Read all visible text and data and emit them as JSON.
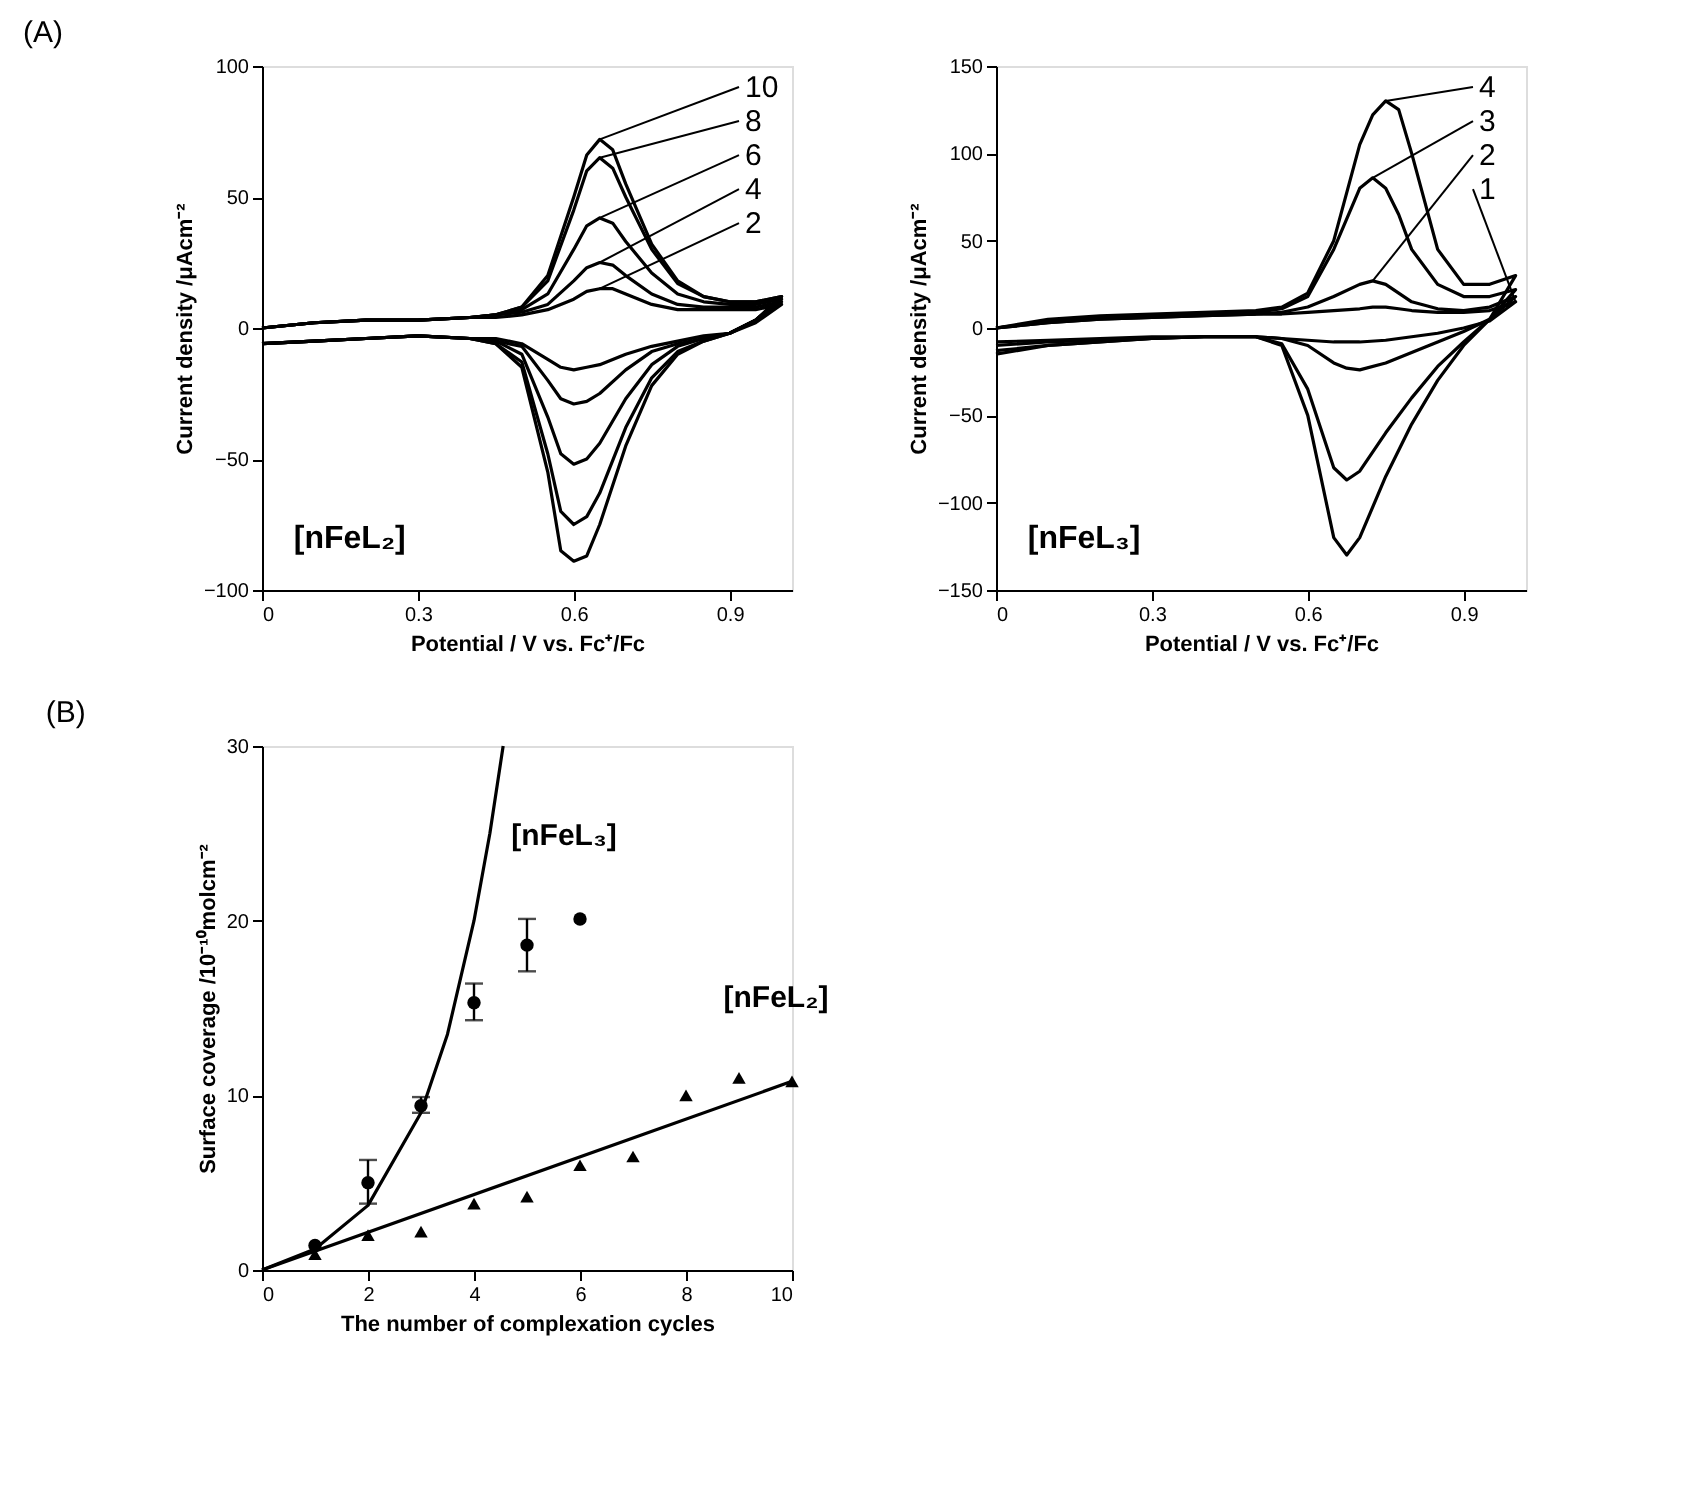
{
  "chart_data": [
    {
      "type": "line",
      "title": "(A)",
      "xlabel": "Potential / V vs. Fc⁺/Fc",
      "ylabel": "Current density /μAcm⁻²",
      "xlim": [
        0,
        1.02
      ],
      "ylim": [
        -100,
        100
      ],
      "xticks": [
        0,
        0.3,
        0.6,
        0.9
      ],
      "yticks": [
        -100,
        -50,
        0,
        50,
        100
      ],
      "legend": "top right",
      "annotations": [
        "[nFeL₂]"
      ],
      "series": [
        {
          "name": "10",
          "color": "#000000",
          "x": [
            0,
            0.1,
            0.2,
            0.3,
            0.4,
            0.45,
            0.5,
            0.55,
            0.6,
            0.625,
            0.65,
            0.675,
            0.7,
            0.75,
            0.8,
            0.85,
            0.9,
            0.95,
            1.0,
            1.0,
            0.95,
            0.9,
            0.85,
            0.8,
            0.75,
            0.7,
            0.65,
            0.625,
            0.6,
            0.575,
            0.55,
            0.5,
            0.45,
            0.4,
            0.3,
            0.2,
            0.1,
            0.0
          ],
          "values": [
            0,
            2,
            3,
            3,
            4,
            5,
            8,
            20,
            50,
            66,
            72,
            68,
            55,
            32,
            18,
            12,
            10,
            10,
            12,
            12,
            3,
            -2,
            -5,
            -10,
            -22,
            -45,
            -75,
            -87,
            -89,
            -85,
            -55,
            -15,
            -6,
            -4,
            -3,
            -4,
            -5,
            -6
          ]
        },
        {
          "name": "8",
          "color": "#000000",
          "x": [
            0,
            0.1,
            0.2,
            0.3,
            0.4,
            0.45,
            0.5,
            0.55,
            0.6,
            0.625,
            0.65,
            0.675,
            0.7,
            0.75,
            0.8,
            0.85,
            0.9,
            0.95,
            1.0,
            1.0,
            0.95,
            0.9,
            0.85,
            0.8,
            0.75,
            0.7,
            0.65,
            0.625,
            0.6,
            0.575,
            0.55,
            0.5,
            0.45,
            0.4,
            0.3,
            0.2,
            0.1,
            0.0
          ],
          "values": [
            0,
            2,
            3,
            3,
            4,
            5,
            8,
            18,
            45,
            60,
            65,
            61,
            50,
            30,
            17,
            12,
            10,
            10,
            12,
            12,
            3,
            -2,
            -5,
            -9,
            -19,
            -38,
            -63,
            -72,
            -75,
            -70,
            -48,
            -13,
            -6,
            -4,
            -3,
            -4,
            -5,
            -6
          ]
        },
        {
          "name": "6",
          "color": "#000000",
          "x": [
            0,
            0.1,
            0.2,
            0.3,
            0.4,
            0.45,
            0.5,
            0.55,
            0.6,
            0.625,
            0.65,
            0.675,
            0.7,
            0.75,
            0.8,
            0.85,
            0.9,
            0.95,
            1.0,
            1.0,
            0.95,
            0.9,
            0.85,
            0.8,
            0.75,
            0.7,
            0.65,
            0.625,
            0.6,
            0.575,
            0.55,
            0.5,
            0.45,
            0.4,
            0.3,
            0.2,
            0.1,
            0.0
          ],
          "values": [
            0,
            2,
            3,
            3,
            4,
            5,
            7,
            13,
            30,
            39,
            42,
            40,
            33,
            21,
            13,
            10,
            9,
            9,
            11,
            11,
            3,
            -2,
            -4,
            -7,
            -14,
            -27,
            -44,
            -50,
            -52,
            -48,
            -34,
            -10,
            -5,
            -4,
            -3,
            -4,
            -5,
            -6
          ]
        },
        {
          "name": "4",
          "color": "#000000",
          "x": [
            0,
            0.1,
            0.2,
            0.3,
            0.4,
            0.45,
            0.5,
            0.55,
            0.6,
            0.625,
            0.65,
            0.675,
            0.7,
            0.75,
            0.8,
            0.85,
            0.9,
            0.95,
            1.0,
            1.0,
            0.95,
            0.9,
            0.85,
            0.8,
            0.75,
            0.7,
            0.65,
            0.625,
            0.6,
            0.575,
            0.55,
            0.5,
            0.45,
            0.4,
            0.3,
            0.2,
            0.1,
            0.0
          ],
          "values": [
            0,
            2,
            3,
            3,
            4,
            5,
            6,
            9,
            18,
            23,
            25,
            24,
            20,
            13,
            9,
            8,
            8,
            8,
            10,
            10,
            3,
            -2,
            -4,
            -6,
            -9,
            -16,
            -25,
            -28,
            -29,
            -27,
            -20,
            -7,
            -5,
            -4,
            -3,
            -4,
            -5,
            -6
          ]
        },
        {
          "name": "2",
          "color": "#000000",
          "x": [
            0,
            0.1,
            0.2,
            0.3,
            0.4,
            0.45,
            0.5,
            0.55,
            0.6,
            0.625,
            0.65,
            0.675,
            0.7,
            0.75,
            0.8,
            0.85,
            0.9,
            0.95,
            1.0,
            1.0,
            0.95,
            0.9,
            0.85,
            0.8,
            0.75,
            0.7,
            0.65,
            0.625,
            0.6,
            0.575,
            0.55,
            0.5,
            0.45,
            0.4,
            0.3,
            0.2,
            0.1,
            0.0
          ],
          "values": [
            0,
            2,
            3,
            3,
            4,
            4,
            5,
            7,
            11,
            14,
            15,
            15,
            13,
            9,
            7,
            7,
            7,
            7,
            9,
            9,
            2,
            -2,
            -3,
            -5,
            -7,
            -10,
            -14,
            -15,
            -16,
            -15,
            -12,
            -6,
            -4,
            -4,
            -3,
            -4,
            -5,
            -6
          ]
        }
      ]
    },
    {
      "type": "line",
      "xlabel": "Potential / V vs. Fc⁺/Fc",
      "ylabel": "Current density /μAcm⁻²",
      "xlim": [
        0,
        1.02
      ],
      "ylim": [
        -150,
        150
      ],
      "xticks": [
        0,
        0.3,
        0.6,
        0.9
      ],
      "yticks": [
        -150,
        -100,
        -50,
        0,
        50,
        100,
        150
      ],
      "legend": "top right",
      "annotations": [
        "[nFeL₃]"
      ],
      "series": [
        {
          "name": "4",
          "color": "#000000",
          "x": [
            0,
            0.1,
            0.2,
            0.3,
            0.4,
            0.5,
            0.55,
            0.6,
            0.65,
            0.7,
            0.725,
            0.75,
            0.775,
            0.8,
            0.85,
            0.9,
            0.95,
            1.0,
            1.0,
            0.95,
            0.9,
            0.85,
            0.8,
            0.75,
            0.7,
            0.675,
            0.65,
            0.6,
            0.55,
            0.5,
            0.4,
            0.3,
            0.2,
            0.1,
            0.0
          ],
          "values": [
            0,
            5,
            7,
            8,
            9,
            10,
            12,
            20,
            50,
            105,
            122,
            130,
            125,
            100,
            45,
            25,
            25,
            30,
            30,
            5,
            -10,
            -30,
            -55,
            -85,
            -120,
            -130,
            -120,
            -50,
            -10,
            -5,
            -5,
            -6,
            -8,
            -10,
            -15
          ]
        },
        {
          "name": "3",
          "color": "#000000",
          "x": [
            0,
            0.1,
            0.2,
            0.3,
            0.4,
            0.5,
            0.55,
            0.6,
            0.65,
            0.7,
            0.725,
            0.75,
            0.775,
            0.8,
            0.85,
            0.9,
            0.95,
            1.0,
            1.0,
            0.95,
            0.9,
            0.85,
            0.8,
            0.75,
            0.7,
            0.675,
            0.65,
            0.6,
            0.55,
            0.5,
            0.4,
            0.3,
            0.2,
            0.1,
            0.0
          ],
          "values": [
            0,
            4,
            6,
            7,
            8,
            9,
            11,
            18,
            45,
            80,
            86,
            80,
            65,
            45,
            25,
            18,
            18,
            22,
            22,
            5,
            -8,
            -22,
            -40,
            -60,
            -82,
            -87,
            -80,
            -35,
            -9,
            -5,
            -5,
            -6,
            -8,
            -10,
            -13
          ]
        },
        {
          "name": "2",
          "color": "#000000",
          "x": [
            0,
            0.1,
            0.2,
            0.3,
            0.4,
            0.5,
            0.55,
            0.6,
            0.65,
            0.7,
            0.725,
            0.75,
            0.775,
            0.8,
            0.85,
            0.9,
            0.95,
            1.0,
            1.0,
            0.95,
            0.9,
            0.85,
            0.8,
            0.75,
            0.7,
            0.675,
            0.65,
            0.6,
            0.55,
            0.5,
            0.4,
            0.3,
            0.2,
            0.1,
            0.0
          ],
          "values": [
            0,
            3,
            5,
            6,
            7,
            8,
            9,
            12,
            18,
            25,
            27,
            25,
            20,
            15,
            11,
            10,
            12,
            18,
            18,
            5,
            -2,
            -8,
            -14,
            -20,
            -24,
            -23,
            -20,
            -10,
            -6,
            -5,
            -5,
            -6,
            -7,
            -8,
            -10
          ]
        },
        {
          "name": "1",
          "color": "#000000",
          "x": [
            0,
            0.1,
            0.2,
            0.3,
            0.4,
            0.5,
            0.55,
            0.6,
            0.65,
            0.7,
            0.725,
            0.75,
            0.775,
            0.8,
            0.85,
            0.9,
            0.95,
            1.0,
            1.0,
            0.95,
            0.9,
            0.85,
            0.8,
            0.75,
            0.7,
            0.675,
            0.65,
            0.6,
            0.55,
            0.5,
            0.4,
            0.3,
            0.2,
            0.1,
            0.0
          ],
          "values": [
            0,
            3,
            5,
            6,
            7,
            8,
            8,
            9,
            10,
            11,
            12,
            12,
            11,
            10,
            9,
            9,
            10,
            15,
            15,
            4,
            0,
            -3,
            -5,
            -7,
            -8,
            -8,
            -8,
            -7,
            -6,
            -5,
            -5,
            -5,
            -6,
            -7,
            -8
          ]
        }
      ]
    },
    {
      "type": "scatter",
      "title": "(B)",
      "xlabel": "The number of complexation cycles",
      "ylabel": "Surface coverage /10⁻¹⁰molcm⁻²",
      "xlim": [
        0,
        10
      ],
      "ylim": [
        0,
        30
      ],
      "xticks": [
        0,
        2,
        4,
        6,
        8,
        10
      ],
      "yticks": [
        0,
        10,
        20,
        30
      ],
      "series": [
        {
          "type": "line",
          "color": "#000000",
          "x": [
            0,
            1,
            2,
            3,
            3.5,
            4,
            4.3,
            4.55
          ],
          "values": [
            0,
            1.2,
            3.7,
            9.0,
            13.5,
            20,
            25,
            30
          ]
        },
        {
          "type": "line",
          "color": "#000000",
          "x": [
            0,
            10
          ],
          "values": [
            0,
            10.8
          ]
        },
        {
          "name": "[nFeL₃]",
          "marker": "circle",
          "color": "#000000",
          "x": [
            1,
            2,
            3,
            4,
            5,
            6
          ],
          "values": [
            1.4,
            5.0,
            9.4,
            15.3,
            18.6,
            20.1
          ],
          "errors": [
            null,
            [
              3.8,
              6.3
            ],
            [
              9.0,
              9.9
            ],
            [
              14.3,
              16.4
            ],
            [
              17.1,
              20.1
            ],
            null
          ]
        },
        {
          "name": "[nFeL₂]",
          "marker": "triangle",
          "color": "#000000",
          "x": [
            1,
            2,
            3,
            4,
            5,
            6,
            7,
            8,
            9,
            10
          ],
          "values": [
            0.9,
            2.0,
            2.2,
            3.8,
            4.2,
            6.0,
            6.5,
            10.0,
            11.0,
            10.8
          ]
        }
      ]
    }
  ]
}
